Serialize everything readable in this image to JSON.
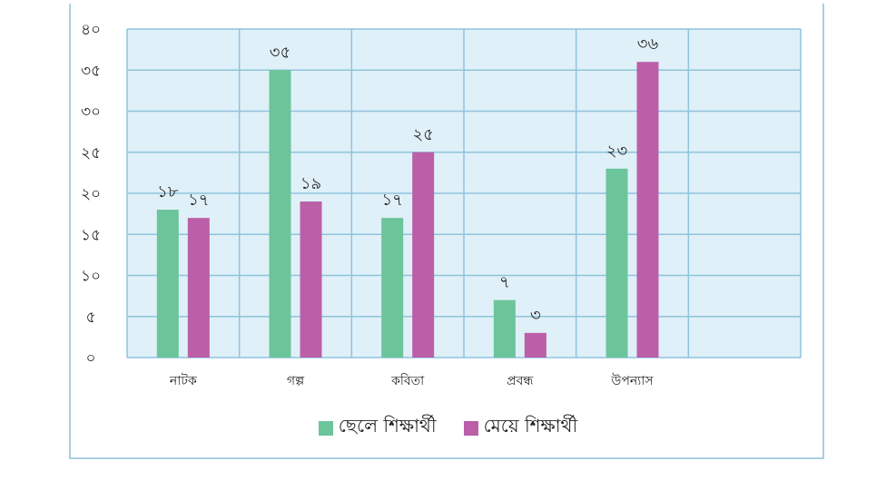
{
  "chart_data": {
    "type": "bar",
    "categories": [
      "নাটক",
      "গল্প",
      "কবিতা",
      "প্রবন্ধ",
      "উপন্যাস"
    ],
    "series": [
      {
        "name": "ছেলে শিক্ষার্থী",
        "values": [
          18,
          35,
          17,
          7,
          23
        ],
        "labels": [
          "১৮",
          "৩৫",
          "১৭",
          "৭",
          "২৩"
        ],
        "color": "#6cc49a"
      },
      {
        "name": "মেয়ে শিক্ষার্থী",
        "values": [
          17,
          19,
          25,
          3,
          36
        ],
        "labels": [
          "১৭",
          "১৯",
          "২৫",
          "৩",
          "৩৬"
        ],
        "color": "#bb5fa8"
      }
    ],
    "ylim": [
      0,
      40
    ],
    "yticks": [
      0,
      5,
      10,
      15,
      20,
      25,
      30,
      35,
      40
    ],
    "ytick_labels": [
      "০",
      "৫",
      "১০",
      "১৫",
      "২০",
      "২৫",
      "৩০",
      "৩৫",
      "৪০"
    ],
    "grid": true,
    "plot_background": "#dff0f8",
    "grid_color": "#8fc3dd",
    "legend_position": "bottom",
    "title": "",
    "xlabel": "",
    "ylabel": ""
  }
}
